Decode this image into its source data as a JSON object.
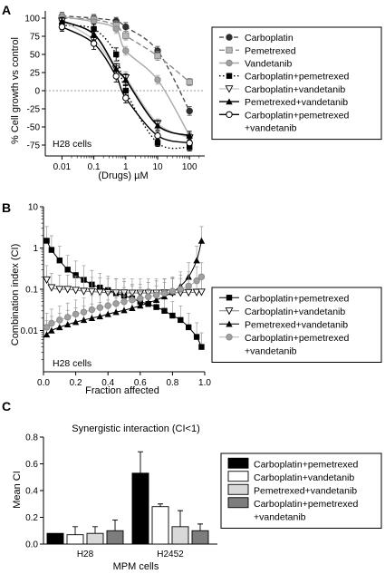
{
  "chart_data": [
    {
      "panel": "A",
      "type": "line",
      "annotation": "H28 cells",
      "xlabel": "(Drugs) µM",
      "ylabel": "% Cell growth vs control",
      "xscale": "log",
      "xlim": [
        0.003,
        300
      ],
      "ylim": [
        -90,
        110
      ],
      "xticks": [
        "0.01",
        "0.1",
        "1",
        "10",
        "100"
      ],
      "xtick_values": [
        0.01,
        0.1,
        1,
        10,
        100
      ],
      "yticks": [
        "-75",
        "-50",
        "-25",
        "0",
        "25",
        "50",
        "75",
        "100"
      ],
      "ytick_values": [
        -75,
        -50,
        -25,
        0,
        25,
        50,
        75,
        100
      ],
      "legend_position": "right",
      "x": [
        0.01,
        0.1,
        0.5,
        1,
        10,
        100
      ],
      "series": [
        {
          "name": "Carboplatin",
          "color": "#505050",
          "marker": "circle-filled",
          "dash": "5,3",
          "y": [
            103,
            100,
            96,
            88,
            55,
            -28
          ],
          "err": [
            5,
            5,
            5,
            6,
            6,
            6
          ]
        },
        {
          "name": "Pemetrexed",
          "color": "#8c8c8c",
          "marker": "square-gray",
          "dash": "6,3",
          "y": [
            100,
            98,
            90,
            76,
            48,
            12
          ],
          "err": [
            5,
            6,
            6,
            6,
            6,
            5
          ]
        },
        {
          "name": "Vandetanib",
          "color": "#a8a8a8",
          "marker": "circle-gray",
          "dash": "",
          "y": [
            102,
            95,
            85,
            55,
            15,
            -62
          ],
          "err": [
            5,
            6,
            6,
            6,
            6,
            6
          ]
        },
        {
          "name": "Carboplatin+pemetrexed",
          "color": "#000000",
          "marker": "square-black",
          "dash": "1.5,2.5",
          "y": [
            90,
            85,
            50,
            0,
            -72,
            -78
          ],
          "err": [
            6,
            7,
            9,
            8,
            5,
            5
          ]
        },
        {
          "name": "Carboplatin+vandetanib",
          "color": "#c8c8c8",
          "marker": "triangle-down-open",
          "dash": "",
          "y": [
            96,
            70,
            30,
            18,
            -45,
            -65
          ],
          "err": [
            6,
            8,
            8,
            8,
            6,
            6
          ]
        },
        {
          "name": "Pemetrexed+vandetanib",
          "color": "#000000",
          "marker": "triangle-filled",
          "dash": "",
          "y": [
            96,
            78,
            30,
            15,
            -48,
            -62
          ],
          "err": [
            5,
            8,
            7,
            8,
            6,
            6
          ]
        },
        {
          "name": "Carboplatin+pemetrexed\n+vandetanib",
          "color": "#000000",
          "marker": "circle-open",
          "dash": "",
          "y": [
            88,
            65,
            20,
            -10,
            -62,
            -72
          ],
          "err": [
            6,
            8,
            8,
            7,
            6,
            6
          ]
        }
      ]
    },
    {
      "panel": "B",
      "type": "line",
      "annotation": "H28 cells",
      "xlabel": "Fraction affected",
      "ylabel": "Combination index (CI)",
      "yscale": "log",
      "xlim": [
        0,
        1
      ],
      "ylim": [
        0.001,
        10
      ],
      "xticks": [
        "0.0",
        "0.2",
        "0.4",
        "0.6",
        "0.8",
        "1.0"
      ],
      "xtick_values": [
        0,
        0.2,
        0.4,
        0.6,
        0.8,
        1.0
      ],
      "yticks": [
        "10",
        "1",
        "0.1",
        "0.01"
      ],
      "ytick_values": [
        10,
        1,
        0.1,
        0.01
      ],
      "legend_position": "right",
      "x": [
        0.02,
        0.05,
        0.1,
        0.15,
        0.2,
        0.25,
        0.3,
        0.35,
        0.4,
        0.45,
        0.5,
        0.55,
        0.6,
        0.65,
        0.7,
        0.75,
        0.8,
        0.85,
        0.9,
        0.95,
        0.98
      ],
      "series": [
        {
          "name": "Carboplatin+pemetrexed",
          "color": "#000000",
          "marker": "square-black",
          "y": [
            1.5,
            0.9,
            0.5,
            0.3,
            0.22,
            0.17,
            0.13,
            0.11,
            0.095,
            0.08,
            0.07,
            0.06,
            0.05,
            0.044,
            0.037,
            0.03,
            0.023,
            0.018,
            0.012,
            0.007,
            0.004
          ]
        },
        {
          "name": "Carboplatin+vandetanib",
          "color": "#7a7a7a",
          "marker": "triangle-down-open",
          "y": [
            0.17,
            0.11,
            0.1,
            0.1,
            0.095,
            0.09,
            0.088,
            0.085,
            0.083,
            0.082,
            0.082,
            0.081,
            0.081,
            0.081,
            0.081,
            0.082,
            0.082,
            0.083,
            0.084,
            0.085,
            0.086
          ]
        },
        {
          "name": "Pemetrexed+vandetanib",
          "color": "#000000",
          "marker": "triangle-filled",
          "y": [
            0.008,
            0.01,
            0.012,
            0.014,
            0.016,
            0.018,
            0.02,
            0.022,
            0.025,
            0.028,
            0.031,
            0.035,
            0.04,
            0.047,
            0.055,
            0.067,
            0.085,
            0.12,
            0.2,
            0.5,
            1.5
          ]
        },
        {
          "name": "Carboplatin+pemetrexed\n+vandetanib",
          "color": "#b4b4b4",
          "marker": "circle-gray",
          "y": [
            0.012,
            0.015,
            0.018,
            0.021,
            0.025,
            0.028,
            0.032,
            0.036,
            0.04,
            0.045,
            0.05,
            0.055,
            0.06,
            0.066,
            0.072,
            0.08,
            0.09,
            0.1,
            0.12,
            0.16,
            0.2
          ]
        }
      ]
    },
    {
      "panel": "C",
      "type": "bar",
      "title": "Synergistic interaction (CI<1)",
      "xlabel": "MPM cells",
      "ylabel": "Mean CI",
      "ylim": [
        0,
        0.8
      ],
      "yticks": [
        "0.0",
        "0.2",
        "0.4",
        "0.6",
        "0.8"
      ],
      "ytick_values": [
        0,
        0.2,
        0.4,
        0.6,
        0.8
      ],
      "categories": [
        "H28",
        "H2452"
      ],
      "legend_position": "right",
      "series": [
        {
          "name": "Carboplatin+pemetrexed",
          "color": "#000000",
          "values": [
            0.08,
            0.53
          ],
          "err": [
            0.0,
            0.16
          ]
        },
        {
          "name": "Carboplatin+vandetanib",
          "color": "#ffffff",
          "values": [
            0.07,
            0.28
          ],
          "err": [
            0.06,
            0.02
          ]
        },
        {
          "name": "Pemetrexed+vandetanib",
          "color": "#d8d8d8",
          "values": [
            0.08,
            0.13
          ],
          "err": [
            0.05,
            0.12
          ]
        },
        {
          "name": "Carboplatin+pemetrexed\n+vandetanib",
          "color": "#7d7d7d",
          "values": [
            0.1,
            0.1
          ],
          "err": [
            0.08,
            0.05
          ]
        }
      ]
    }
  ]
}
